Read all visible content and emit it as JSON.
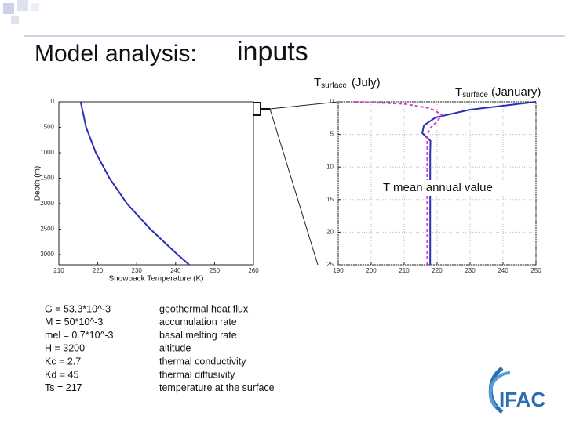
{
  "title": {
    "lead": "Model analysis:",
    "main": "inputs"
  },
  "chart_data": [
    {
      "type": "line",
      "xlabel": "Snowpack Temperature (K)",
      "ylabel": "Depth (m)",
      "xlim": [
        210,
        260
      ],
      "xticks": [
        210,
        220,
        230,
        240,
        250,
        260
      ],
      "ylim": [
        3200,
        0
      ],
      "yticks": [
        0,
        500,
        1000,
        1500,
        2000,
        2500,
        3000
      ],
      "grid": false,
      "series": [
        {
          "color": "#2b2fb8",
          "style": "solid",
          "x": [
            215.6,
            217,
            219.5,
            223,
            227.5,
            233.5,
            240.5,
            243.5
          ],
          "y": [
            0,
            500,
            1000,
            1500,
            2000,
            2500,
            3000,
            3200
          ]
        }
      ]
    },
    {
      "type": "line",
      "xlim": [
        190,
        250
      ],
      "xticks": [
        190,
        200,
        210,
        220,
        230,
        240,
        250
      ],
      "ylim": [
        25,
        0
      ],
      "yticks": [
        0,
        5,
        10,
        15,
        20,
        25
      ],
      "grid": true,
      "series": [
        {
          "color": "#2b2fb8",
          "style": "solid",
          "x": [
            250,
            230,
            219.5,
            216,
            215.5,
            218,
            217.9,
            217.9
          ],
          "y": [
            0,
            1.2,
            2.4,
            3.6,
            4.8,
            6,
            8,
            25
          ]
        },
        {
          "color": "#d63bd6",
          "style": "dashed",
          "x": [
            195,
            210,
            218,
            221.5,
            220,
            218,
            217,
            217
          ],
          "y": [
            0,
            0.3,
            1,
            2,
            3,
            4,
            5,
            25
          ]
        }
      ]
    }
  ],
  "annotations": {
    "july": {
      "main": "T",
      "sub": "surface",
      "rest": "(July)"
    },
    "january": {
      "main": "T",
      "sub": "surface",
      "rest": "(January)"
    },
    "mean": "T mean annual value"
  },
  "parameters": [
    [
      "G = 53.3*10^-3",
      "geothermal heat flux"
    ],
    [
      "M = 50*10^-3",
      "accumulation rate"
    ],
    [
      "mel = 0.7*10^-3",
      "basal melting rate"
    ],
    [
      "H = 3200",
      "altitude"
    ],
    [
      "Kc = 2.7",
      "thermal conductivity"
    ],
    [
      "Kd = 45",
      "thermal diffusivity"
    ],
    [
      "Ts = 217",
      "temperature at the surface"
    ]
  ],
  "logo": "IFAC"
}
